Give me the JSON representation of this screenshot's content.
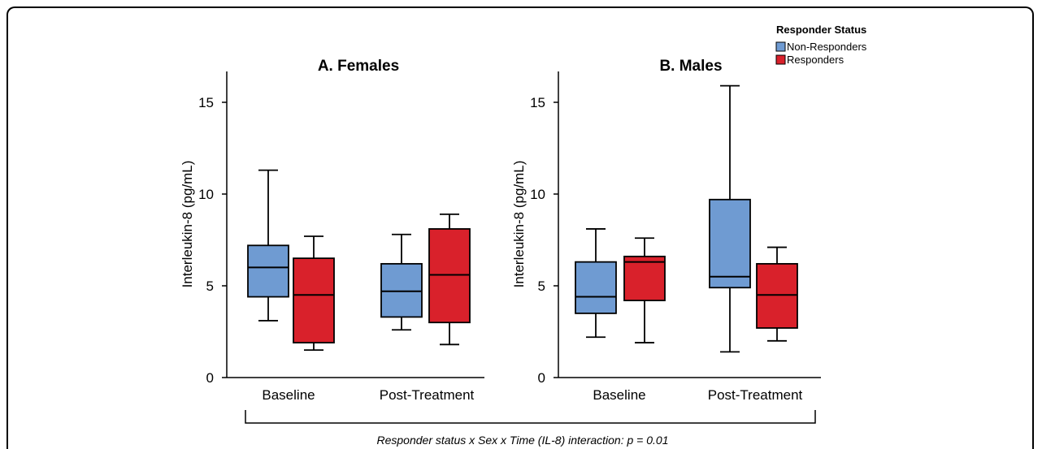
{
  "chart_data": {
    "type": "boxplot",
    "legend": {
      "title": "Responder Status",
      "entries": [
        {
          "name": "Non-Responders",
          "color": "#6f9bd2"
        },
        {
          "name": "Responders",
          "color": "#d9212b"
        }
      ],
      "placement": "top-right"
    },
    "ylabel": "Interleukin-8 (pg/mL)",
    "ylim": [
      0,
      16.5
    ],
    "yticks": [
      "0",
      "5",
      "10",
      "15"
    ],
    "categories": [
      "Baseline",
      "Post-Treatment"
    ],
    "panels": [
      {
        "title": "A. Females",
        "groups": [
          {
            "category": "Baseline",
            "series": "Non-Responders",
            "min": 3.1,
            "q1": 4.4,
            "median": 6.0,
            "q3": 7.2,
            "max": 11.3
          },
          {
            "category": "Baseline",
            "series": "Responders",
            "min": 1.5,
            "q1": 1.9,
            "median": 4.5,
            "q3": 6.5,
            "max": 7.7
          },
          {
            "category": "Post-Treatment",
            "series": "Non-Responders",
            "min": 2.6,
            "q1": 3.3,
            "median": 4.7,
            "q3": 6.2,
            "max": 7.8
          },
          {
            "category": "Post-Treatment",
            "series": "Responders",
            "min": 1.8,
            "q1": 3.0,
            "median": 5.6,
            "q3": 8.1,
            "max": 8.9
          }
        ]
      },
      {
        "title": "B. Males",
        "groups": [
          {
            "category": "Baseline",
            "series": "Non-Responders",
            "min": 2.2,
            "q1": 3.5,
            "median": 4.4,
            "q3": 6.3,
            "max": 8.1
          },
          {
            "category": "Baseline",
            "series": "Responders",
            "min": 1.9,
            "q1": 4.2,
            "median": 6.3,
            "q3": 6.6,
            "max": 7.6
          },
          {
            "category": "Post-Treatment",
            "series": "Non-Responders",
            "min": 1.4,
            "q1": 4.9,
            "median": 5.5,
            "q3": 9.7,
            "max": 15.9
          },
          {
            "category": "Post-Treatment",
            "series": "Responders",
            "min": 2.0,
            "q1": 2.7,
            "median": 4.5,
            "q3": 6.2,
            "max": 7.1
          }
        ]
      }
    ],
    "annotation": "Responder status x Sex x Time (IL-8) interaction:  p = 0.01",
    "grid": false
  }
}
